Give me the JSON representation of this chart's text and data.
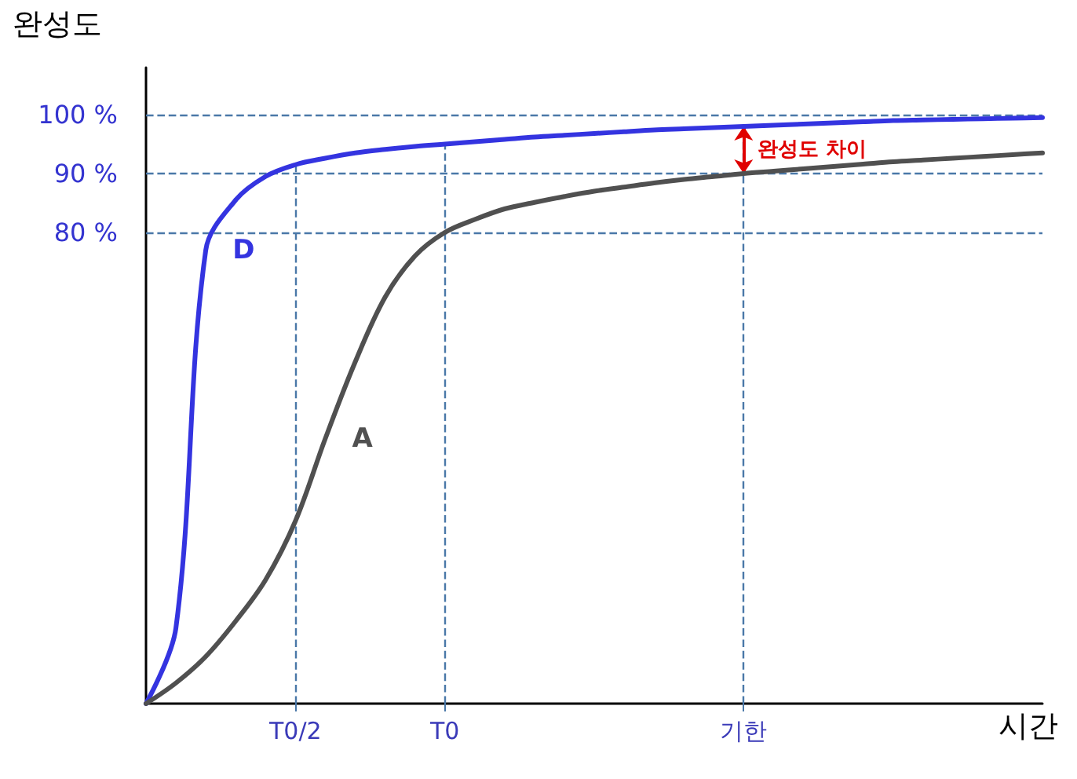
{
  "chart_data": {
    "type": "line",
    "xlabel": "시간",
    "ylabel": "완성도",
    "ylim": [
      0,
      108
    ],
    "categories": [
      null,
      null,
      null,
      null,
      null,
      "T0/2",
      null,
      null,
      null,
      null,
      "T0",
      null,
      null,
      null,
      null,
      null,
      null,
      null,
      null,
      null,
      "기한",
      null,
      null,
      null,
      null,
      null,
      null,
      null,
      null,
      null,
      null
    ],
    "yticks": [
      {
        "value": 80,
        "label": "80 %"
      },
      {
        "value": 90,
        "label": "90 %"
      },
      {
        "value": 100,
        "label": "100 %"
      }
    ],
    "series": [
      {
        "name": "D",
        "color": "#3434e0",
        "values": [
          0,
          12.8,
          77,
          85.5,
          89.5,
          91.5,
          92.6,
          93.5,
          94.1,
          94.6,
          95,
          95.4,
          95.8,
          96.2,
          96.5,
          96.8,
          97.1,
          97.4,
          97.6,
          97.8,
          98,
          98.2,
          98.4,
          98.6,
          98.8,
          99,
          99.1,
          99.2,
          99.3,
          99.4,
          99.5
        ]
      },
      {
        "name": "A",
        "color": "#505050",
        "values": [
          0,
          3.5,
          8,
          14,
          21,
          31,
          45,
          58,
          69,
          76,
          80,
          82.2,
          84,
          85.1,
          86.1,
          87,
          87.7,
          88.4,
          89,
          89.5,
          90,
          90.4,
          90.8,
          91.2,
          91.6,
          92,
          92.3,
          92.6,
          92.9,
          93.2,
          93.5
        ]
      }
    ],
    "ref_lines": [
      {
        "axis": "y",
        "value": 100,
        "color": "#4a78a8",
        "line_style": "dashed"
      },
      {
        "axis": "y",
        "value": 90,
        "color": "#4a78a8",
        "line_style": "dashed"
      },
      {
        "axis": "y",
        "value": 80,
        "color": "#4a78a8",
        "line_style": "dashed"
      },
      {
        "axis": "x",
        "value": "T0/2",
        "color": "#4a78a8",
        "line_style": "dashed"
      },
      {
        "axis": "x",
        "value": "T0",
        "color": "#4a78a8",
        "line_style": "dashed"
      },
      {
        "axis": "x",
        "value": "기한",
        "color": "#4a78a8",
        "line_style": "dashed"
      }
    ],
    "annotations": [
      {
        "text": "완성도 차이",
        "x": "기한",
        "y": 94
      }
    ],
    "marker": "none",
    "line_style": "solid",
    "legend": false,
    "grid": false
  }
}
